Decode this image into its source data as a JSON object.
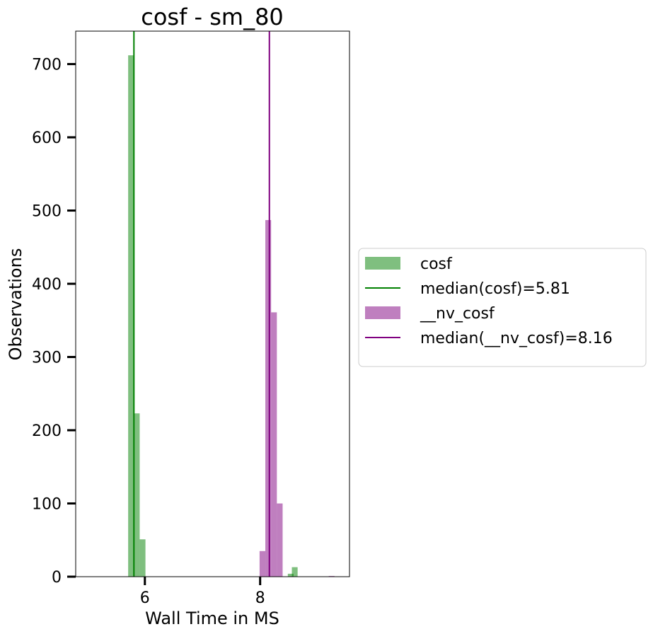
{
  "chart_data": {
    "type": "bar",
    "title": "cosf - sm_80",
    "xlabel": "Wall Time in MS",
    "ylabel": "Observations",
    "xlim": [
      4.8,
      9.55
    ],
    "ylim": [
      0,
      745
    ],
    "xticks": [
      6,
      8
    ],
    "yticks": [
      0,
      100,
      200,
      300,
      400,
      500,
      600,
      700
    ],
    "grid": false,
    "legend_position": "center-right, outside plot",
    "series": [
      {
        "name": "cosf",
        "color": "#008000",
        "opacity": 0.5,
        "bin_width": 0.1,
        "bins": [
          {
            "x0": 5.71,
            "count": 712
          },
          {
            "x0": 5.81,
            "count": 223
          },
          {
            "x0": 5.91,
            "count": 51
          },
          {
            "x0": 8.48,
            "count": 4
          },
          {
            "x0": 8.55,
            "count": 13
          }
        ],
        "median": 5.81,
        "median_label": "median(cosf)=5.81"
      },
      {
        "name": "__nv_cosf",
        "color": "#800080",
        "opacity": 0.5,
        "bin_width": 0.1,
        "bins": [
          {
            "x0": 7.99,
            "count": 35
          },
          {
            "x0": 8.09,
            "count": 487
          },
          {
            "x0": 8.19,
            "count": 361
          },
          {
            "x0": 8.29,
            "count": 100
          },
          {
            "x0": 9.19,
            "count": 1
          }
        ],
        "median": 8.16,
        "median_label": "median(__nv_cosf)=8.16"
      }
    ]
  }
}
